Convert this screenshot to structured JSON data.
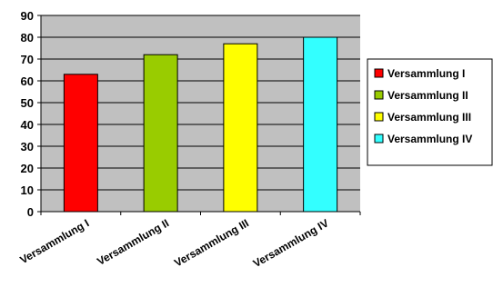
{
  "chart_data": {
    "type": "bar",
    "title": "",
    "xlabel": "",
    "ylabel": "",
    "ylim": [
      0,
      90
    ],
    "yticks": [
      0,
      10,
      20,
      30,
      40,
      50,
      60,
      70,
      80,
      90
    ],
    "grid": true,
    "legend_position": "right",
    "plot_background": "#c0c0c0",
    "categories": [
      "Versammlung I",
      "Versammlung II",
      "Versammlung III",
      "Versammlung IV"
    ],
    "values": [
      63,
      72,
      77,
      80
    ],
    "colors": [
      "#ff0000",
      "#99cc00",
      "#ffff00",
      "#33ffff"
    ],
    "legend": [
      "Versammlung I",
      "Versammlung II",
      "Versammlung III",
      "Versammlung IV"
    ]
  }
}
